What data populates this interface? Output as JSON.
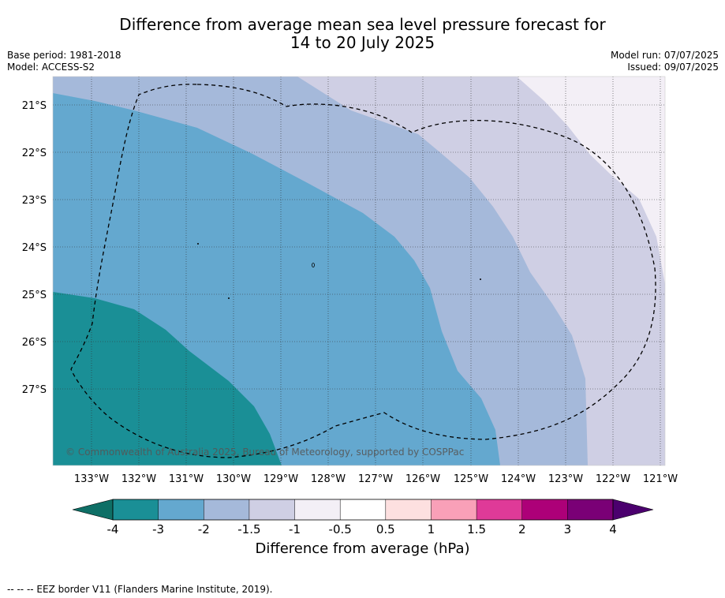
{
  "title": {
    "line1": "Difference from average mean sea level pressure forecast for",
    "line2": "14 to 20 July 2025"
  },
  "meta": {
    "base_period": "Base period: 1981-2018",
    "model": "Model: ACCESS-S2",
    "model_run": "Model run: 07/07/2025",
    "issued": "Issued: 09/07/2025"
  },
  "map": {
    "lat_labels": [
      "21°S",
      "22°S",
      "23°S",
      "24°S",
      "25°S",
      "26°S",
      "27°S"
    ],
    "lon_labels": [
      "133°W",
      "132°W",
      "131°W",
      "130°W",
      "129°W",
      "128°W",
      "127°W",
      "126°W",
      "125°W",
      "124°W",
      "123°W",
      "122°W",
      "121°W"
    ],
    "copyright": "© Commonwealth of Australia 2025, Bureau of Meteorology, supported by COSPPac",
    "zone_colors": {
      "lt_-3": "#1a8f96",
      "-3_to_-2": "#64a8cf",
      "-2_to_-1.5": "#a5b9da",
      "-1.5_to_-1": "#cfcfe4",
      "-1_to_-0.5": "#f3eff6"
    }
  },
  "colorbar": {
    "tick_labels": [
      "-4",
      "-3",
      "-2",
      "-1.5",
      "-1",
      "-0.5",
      "0.5",
      "1",
      "1.5",
      "2",
      "3",
      "4"
    ],
    "under_color": "#0e6f66",
    "over_color": "#4b006e",
    "colors": [
      "#1a8f96",
      "#64a8cf",
      "#a5b9da",
      "#cfcfe4",
      "#f3eff6",
      "#ffffff",
      "#fde0e0",
      "#f9a0b8",
      "#df3a98",
      "#ad0078",
      "#7a0076"
    ],
    "label": "Difference from average (hPa)"
  },
  "footnote": "--  --  -- EEZ border V11 (Flanders Marine Institute, 2019)."
}
